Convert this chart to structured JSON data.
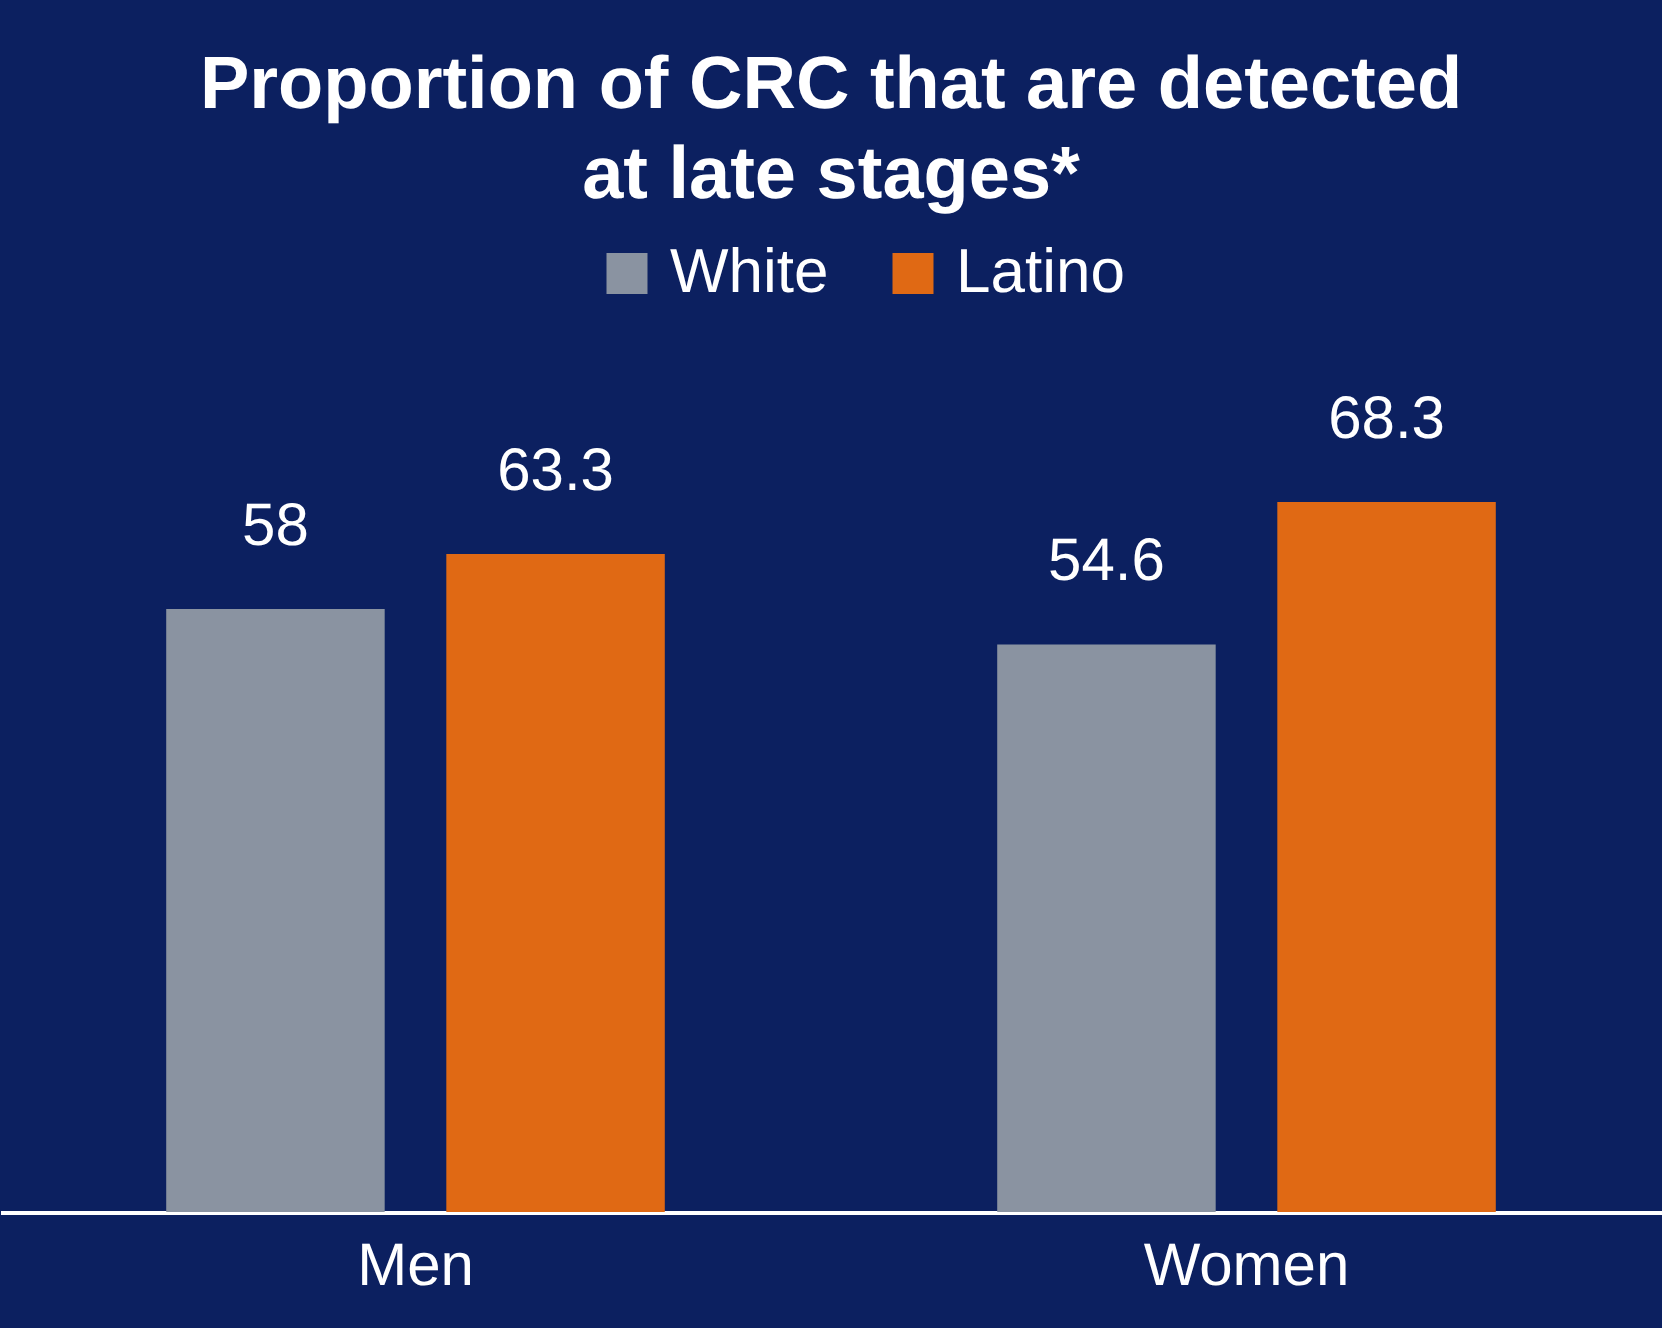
{
  "chart_data": {
    "type": "bar",
    "title": "Proportion of CRC that are detected at late stages*",
    "categories": [
      "Men",
      "Women"
    ],
    "series": [
      {
        "name": "White",
        "color": "#8a93a1",
        "values": [
          58,
          54.6
        ]
      },
      {
        "name": "Latino",
        "color": "#e06914",
        "values": [
          63.3,
          68.3
        ]
      }
    ],
    "data_labels": true,
    "legend": "top"
  }
}
